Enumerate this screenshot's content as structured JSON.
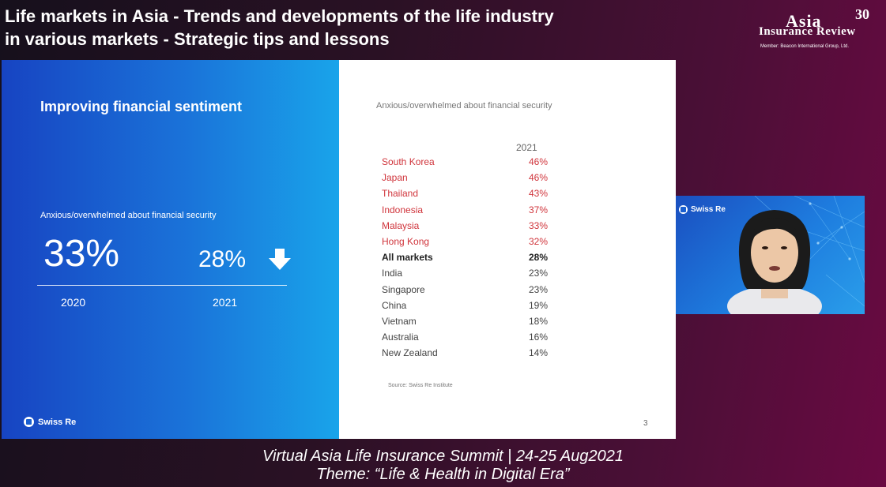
{
  "header": {
    "title_line1": "Life markets in Asia - Trends and developments of the life industry",
    "title_line2": "in various markets - Strategic tips and lessons"
  },
  "logo": {
    "line1": "Asia",
    "line2": "Insurance Review",
    "anniversary": "30",
    "member": "Member: Beacon International Group, Ltd."
  },
  "slide": {
    "heading": "Improving financial sentiment",
    "metric_label": "Anxious/overwhelmed about financial security",
    "value_2020": "33%",
    "value_2021": "28%",
    "year_2020": "2020",
    "year_2021": "2021",
    "brand": "Swiss Re",
    "subtitle": "Anxious/overwhelmed about financial security",
    "column_header": "2021",
    "rows": [
      {
        "market": "South Korea",
        "pct": "46%"
      },
      {
        "market": "Japan",
        "pct": "46%"
      },
      {
        "market": "Thailand",
        "pct": "43%"
      },
      {
        "market": "Indonesia",
        "pct": "37%"
      },
      {
        "market": "Malaysia",
        "pct": "33%"
      },
      {
        "market": "Hong Kong",
        "pct": "32%"
      },
      {
        "market": "All markets",
        "pct": "28%"
      },
      {
        "market": "India",
        "pct": "23%"
      },
      {
        "market": "Singapore",
        "pct": "23%"
      },
      {
        "market": "China",
        "pct": "19%"
      },
      {
        "market": "Vietnam",
        "pct": "18%"
      },
      {
        "market": "Australia",
        "pct": "16%"
      },
      {
        "market": "New Zealand",
        "pct": "14%"
      }
    ],
    "source": "Source: Swiss Re Institute",
    "page_number": "3"
  },
  "camera": {
    "brand": "Swiss Re"
  },
  "footer": {
    "line1": "Virtual Asia Life Insurance Summit |  24-25 Aug2021",
    "line2": "Theme: “Life & Health in Digital Era”"
  },
  "colors": {
    "highlight": "#d0353c",
    "slide_blue": "#1a73d9"
  }
}
